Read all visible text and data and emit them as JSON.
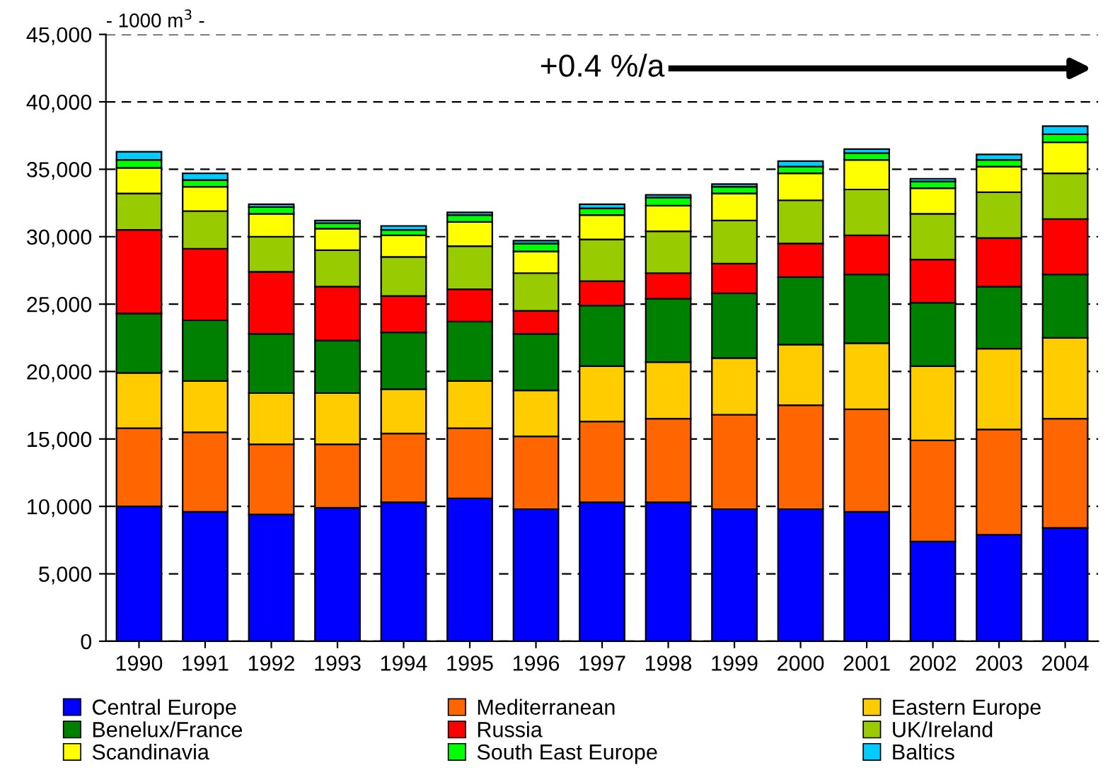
{
  "chart_data": {
    "type": "bar",
    "stacked": true,
    "categories": [
      "1990",
      "1991",
      "1992",
      "1993",
      "1994",
      "1995",
      "1996",
      "1997",
      "1998",
      "1999",
      "2000",
      "2001",
      "2002",
      "2003",
      "2004"
    ],
    "series": [
      {
        "name": "Central Europe",
        "color": "#0000ff",
        "values": [
          10000,
          9600,
          9400,
          9900,
          10300,
          10600,
          9800,
          10300,
          10300,
          9800,
          9800,
          9600,
          7400,
          7900,
          8400
        ]
      },
      {
        "name": "Mediterranean",
        "color": "#ff6600",
        "values": [
          5800,
          5900,
          5200,
          4700,
          5100,
          5200,
          5400,
          6000,
          6200,
          7000,
          7700,
          7600,
          7500,
          7800,
          8100
        ]
      },
      {
        "name": "Eastern Europe",
        "color": "#ffcc00",
        "values": [
          4100,
          3800,
          3800,
          3800,
          3300,
          3500,
          3400,
          4100,
          4200,
          4200,
          4500,
          4900,
          5500,
          6000,
          6000
        ]
      },
      {
        "name": "Benelux/France",
        "color": "#008000",
        "values": [
          4400,
          4500,
          4400,
          3900,
          4200,
          4400,
          4200,
          4500,
          4700,
          4800,
          5000,
          5100,
          4700,
          4600,
          4700
        ]
      },
      {
        "name": "Russia",
        "color": "#ff0000",
        "values": [
          6200,
          5300,
          4600,
          4000,
          2700,
          2400,
          1700,
          1800,
          1900,
          2200,
          2500,
          2900,
          3200,
          3600,
          4100
        ]
      },
      {
        "name": "UK/Ireland",
        "color": "#99cc00",
        "values": [
          2700,
          2800,
          2600,
          2700,
          2900,
          3200,
          2800,
          3100,
          3100,
          3200,
          3200,
          3400,
          3400,
          3400,
          3400
        ]
      },
      {
        "name": "Scandinavia",
        "color": "#ffff00",
        "values": [
          1900,
          1800,
          1700,
          1600,
          1600,
          1800,
          1600,
          1800,
          1900,
          2000,
          2000,
          2200,
          1900,
          1900,
          2300
        ]
      },
      {
        "name": "South East Europe",
        "color": "#00ff00",
        "values": [
          600,
          500,
          500,
          400,
          400,
          500,
          600,
          500,
          600,
          500,
          500,
          500,
          500,
          500,
          600
        ]
      },
      {
        "name": "Baltics",
        "color": "#00ccff",
        "values": [
          600,
          500,
          200,
          200,
          300,
          200,
          200,
          300,
          200,
          200,
          400,
          300,
          200,
          400,
          600
        ]
      }
    ],
    "ylim": [
      0,
      45000
    ],
    "yticks": [
      {
        "value": 0,
        "label": "0"
      },
      {
        "value": 5000,
        "label": "5,000"
      },
      {
        "value": 10000,
        "label": "10,000"
      },
      {
        "value": 15000,
        "label": "15,000"
      },
      {
        "value": 20000,
        "label": "20,000"
      },
      {
        "value": 25000,
        "label": "25,000"
      },
      {
        "value": 30000,
        "label": "30,000"
      },
      {
        "value": 35000,
        "label": "35,000"
      },
      {
        "value": 40000,
        "label": "40,000"
      },
      {
        "value": 45000,
        "label": "45,000"
      }
    ],
    "ylabel": "- 1000 m$^{3}$ -",
    "annotations": [
      "+0.4 %/a"
    ],
    "grid": "y",
    "legend": "bottom"
  }
}
